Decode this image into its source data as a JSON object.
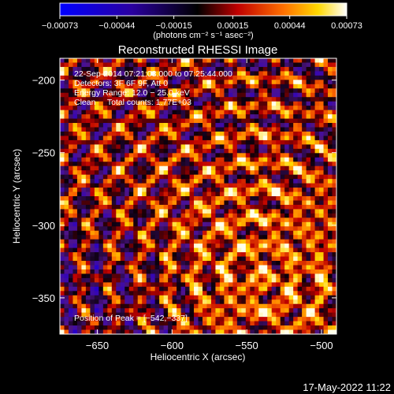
{
  "chart_data": {
    "type": "heatmap",
    "title": "Reconstructed RHESSI Image",
    "xlabel": "Heliocentric X (arcsec)",
    "ylabel": "Heliocentric Y (arcsec)",
    "xlim": [
      -675,
      -490
    ],
    "ylim": [
      -375,
      -185
    ],
    "xticks": [
      {
        "value": -650,
        "label": "−650"
      },
      {
        "value": -600,
        "label": "−600"
      },
      {
        "value": -550,
        "label": "−550"
      },
      {
        "value": -500,
        "label": "−500"
      }
    ],
    "yticks": [
      {
        "value": -200,
        "label": "−200"
      },
      {
        "value": -250,
        "label": "−250"
      },
      {
        "value": -300,
        "label": "−300"
      },
      {
        "value": -350,
        "label": "−350"
      }
    ],
    "colorbar": {
      "range": [
        -0.00073,
        0.00073
      ],
      "ticks": [
        {
          "value": -0.00073,
          "label": "−0.00073"
        },
        {
          "value": -0.00044,
          "label": "−0.00044"
        },
        {
          "value": -0.00015,
          "label": "−0.00015"
        },
        {
          "value": 0.00015,
          "label": "0.00015"
        },
        {
          "value": 0.00044,
          "label": "0.00044"
        },
        {
          "value": 0.00073,
          "label": "0.00073"
        }
      ],
      "unit_label": "(photons cm⁻² s⁻¹ asec⁻²)",
      "colormap": "blue-black-red-yellow-white"
    },
    "annotations": [
      "22-Sep-2014 07:21:08.000 to 07:25:44.000",
      "Detectors: 3F 6F 9F, Att 0",
      "Energy Range: 12.0 − 25.0 keV",
      "Clean     Total counts: 1.77E+03"
    ],
    "peak_label": "Position of Peak = [−542,−337]",
    "peak": {
      "x": -542,
      "y": -337
    }
  },
  "footer": {
    "timestamp": "17-May-2022 11:22"
  }
}
